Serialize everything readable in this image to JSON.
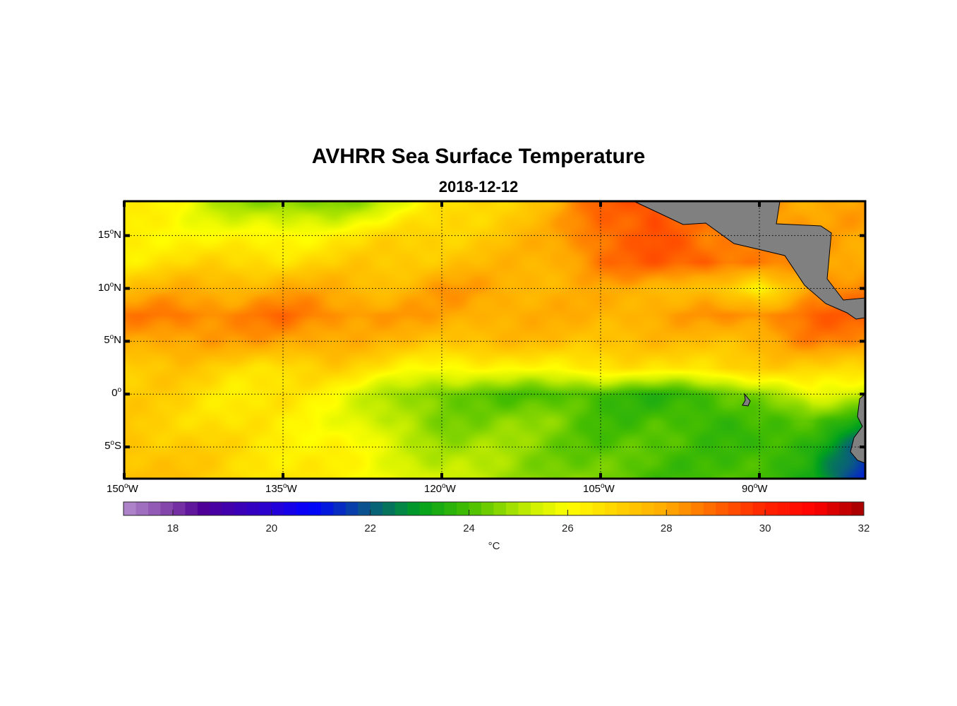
{
  "title": "AVHRR Sea Surface Temperature",
  "subtitle": "2018-12-12",
  "chart_data": {
    "type": "heatmap",
    "title": "AVHRR Sea Surface Temperature",
    "subtitle": "2018-12-12",
    "lon_range": [
      -150,
      -80
    ],
    "lat_range": [
      -8,
      18.25
    ],
    "grid_lons": [
      -150,
      -145,
      -140,
      -135,
      -130,
      -125,
      -120,
      -115,
      -110,
      -105,
      -100,
      -95,
      -90,
      -85,
      -80
    ],
    "grid_lats": [
      18,
      15,
      12.5,
      10,
      7.5,
      5,
      2.5,
      0,
      -2.5,
      -5,
      -8
    ],
    "sst_c": [
      [
        26.3,
        26,
        25,
        24.5,
        24.5,
        25.5,
        26.5,
        27,
        27.5,
        29,
        29.5,
        28.5,
        28.5,
        28,
        28
      ],
      [
        26.2,
        26.3,
        26,
        26,
        26.5,
        26.8,
        27,
        27.3,
        27.8,
        29,
        29.3,
        28.5,
        29,
        28,
        28
      ],
      [
        26.5,
        26.8,
        26.8,
        26.8,
        27,
        27.2,
        27.4,
        27.5,
        27.8,
        28.8,
        29,
        29.2,
        28.5,
        28.3,
        28
      ],
      [
        27.5,
        27.8,
        27.8,
        28,
        27.8,
        27.6,
        28.2,
        28,
        27.8,
        27.8,
        27.8,
        27.5,
        26,
        28.5,
        28.5
      ],
      [
        28.5,
        28.8,
        28.5,
        28.8,
        28.5,
        28.2,
        28,
        28,
        27.8,
        27.8,
        28,
        28.2,
        28.5,
        29,
        29
      ],
      [
        28,
        28.2,
        28,
        28.2,
        28,
        27.5,
        27.5,
        27.5,
        27.5,
        27.5,
        27.5,
        27.5,
        27.8,
        28.5,
        28.5
      ],
      [
        27.2,
        27.3,
        26.8,
        26.8,
        27,
        26.5,
        26,
        26,
        26.3,
        26.5,
        26.5,
        26.8,
        27,
        27,
        27
      ],
      [
        27,
        27,
        26.5,
        26.5,
        26,
        25,
        24.2,
        24.2,
        24,
        23.8,
        23.7,
        23.8,
        24.5,
        26,
        25
      ],
      [
        27.2,
        27,
        26.5,
        26.3,
        26,
        25,
        24.5,
        24.7,
        24.5,
        24,
        24,
        23.6,
        24.2,
        24,
        23
      ],
      [
        27.5,
        27.2,
        26.8,
        26.5,
        26.2,
        25.5,
        25,
        24.8,
        24.5,
        24.2,
        24,
        24,
        23.8,
        23.4,
        22
      ],
      [
        27.5,
        27.3,
        27,
        26.5,
        26.2,
        26,
        25.2,
        25,
        24.7,
        24.3,
        24,
        24,
        23.8,
        23.5,
        21
      ]
    ],
    "x_ticks": [
      {
        "v": -150,
        "d": "150",
        "h": "W"
      },
      {
        "v": -135,
        "d": "135",
        "h": "W"
      },
      {
        "v": -120,
        "d": "120",
        "h": "W"
      },
      {
        "v": -105,
        "d": "105",
        "h": "W"
      },
      {
        "v": -90,
        "d": "90",
        "h": "W"
      }
    ],
    "y_ticks": [
      {
        "v": 15,
        "d": "15",
        "h": "N"
      },
      {
        "v": 10,
        "d": "10",
        "h": "N"
      },
      {
        "v": 5,
        "d": "5",
        "h": "N"
      },
      {
        "v": 0,
        "d": "0",
        "h": ""
      },
      {
        "v": -5,
        "d": "5",
        "h": "S"
      }
    ],
    "colorbar": {
      "range": [
        17,
        32
      ],
      "ticks": [
        "18",
        "20",
        "22",
        "24",
        "26",
        "28",
        "30",
        "32"
      ],
      "label": "°C"
    },
    "land_color": "#808080",
    "grid": "dotted"
  }
}
